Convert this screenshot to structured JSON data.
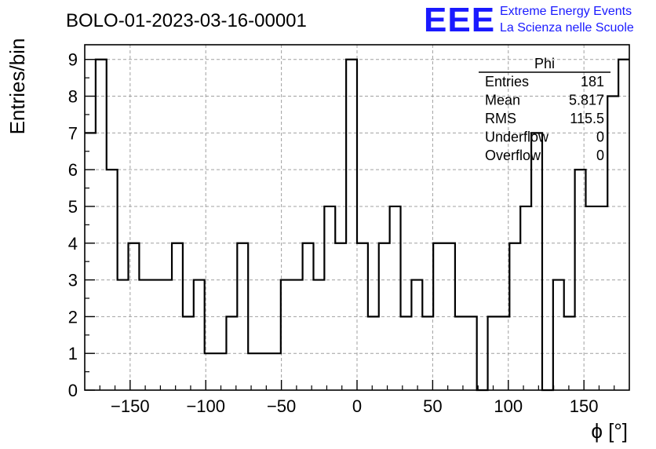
{
  "chart_data": {
    "type": "bar",
    "title": "BOLO-01-2023-03-16-00001",
    "xlabel": "ϕ [°]",
    "ylabel": "Entries/bin",
    "xlim": [
      -180,
      180
    ],
    "ylim": [
      0,
      9.4
    ],
    "grid": true,
    "bin_width": 7.2,
    "x_ticks": [
      -150,
      -100,
      -50,
      0,
      50,
      100,
      150
    ],
    "x_tick_labels": [
      "−150",
      "−100",
      "−50",
      "0",
      "50",
      "100",
      "150"
    ],
    "y_ticks": [
      0,
      1,
      2,
      3,
      4,
      5,
      6,
      7,
      8,
      9
    ],
    "y_tick_labels": [
      "0",
      "1",
      "2",
      "3",
      "4",
      "5",
      "6",
      "7",
      "8",
      "9"
    ],
    "bin_centers": [
      -176.4,
      -169.2,
      -162.0,
      -154.8,
      -147.6,
      -140.4,
      -133.2,
      -126.0,
      -118.8,
      -111.6,
      -104.4,
      -97.2,
      -90.0,
      -82.8,
      -75.6,
      -68.4,
      -61.2,
      -54.0,
      -46.8,
      -39.6,
      -32.4,
      -25.2,
      -18.0,
      -10.8,
      -3.6,
      3.6,
      10.8,
      18.0,
      25.2,
      32.4,
      39.6,
      46.8,
      54.0,
      61.2,
      68.4,
      75.6,
      82.8,
      90.0,
      97.2,
      104.4,
      111.6,
      118.8,
      126.0,
      133.2,
      140.4,
      147.6,
      154.8,
      162.0,
      169.2,
      176.4
    ],
    "values": [
      7,
      9,
      6,
      3,
      4,
      3,
      3,
      3,
      4,
      2,
      3,
      1,
      1,
      2,
      4,
      1,
      1,
      1,
      3,
      3,
      4,
      3,
      5,
      4,
      9,
      4,
      2,
      4,
      5,
      2,
      3,
      2,
      4,
      4,
      2,
      2,
      0,
      2,
      2,
      4,
      5,
      7,
      0,
      3,
      2,
      6,
      5,
      5,
      8,
      9
    ],
    "stats": {
      "title": "Phi",
      "rows": [
        {
          "label": "Entries",
          "value": "181"
        },
        {
          "label": "Mean",
          "value": "5.817"
        },
        {
          "label": "RMS",
          "value": "115.5"
        },
        {
          "label": "Underflow",
          "value": "0"
        },
        {
          "label": "Overflow",
          "value": "0"
        }
      ]
    }
  },
  "logo": {
    "text": "EEE",
    "line1": "Extreme Energy Events",
    "line2": "La Scienza nelle Scuole",
    "color": "#1a1aff"
  },
  "colors": {
    "line": "#000000",
    "grid": "#a0a0a0",
    "logo": "#1a1aff"
  }
}
